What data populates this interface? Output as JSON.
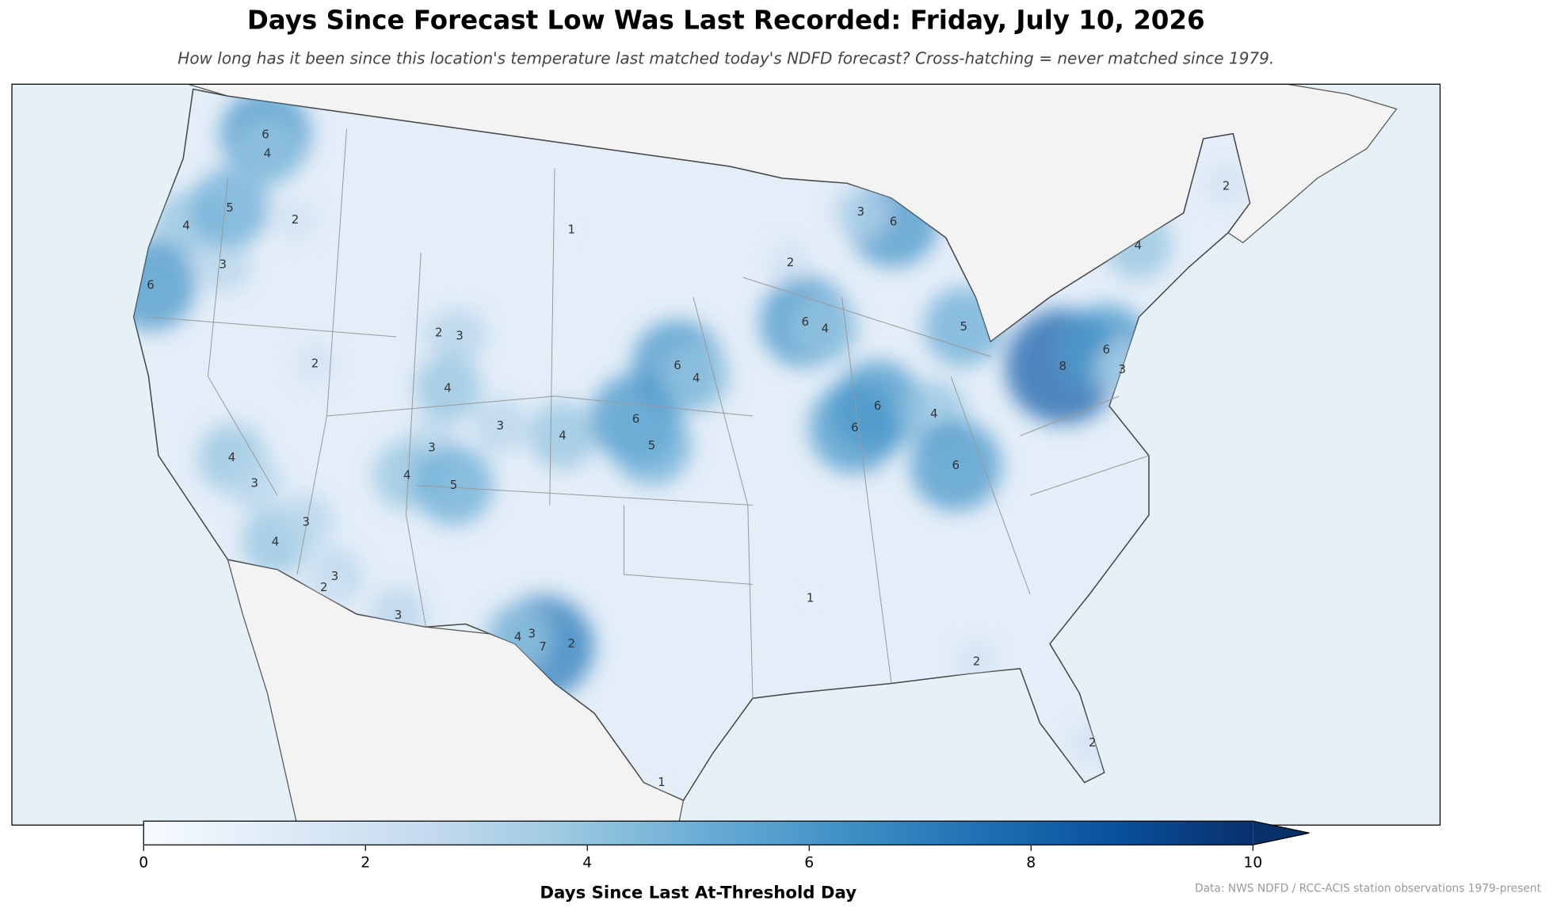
{
  "chart_data": {
    "type": "contour",
    "title": "Days Since Forecast Low Was Last Recorded: Friday, July 10, 2026",
    "subtitle": "How long has it been since this location's temperature last matched today's NDFD forecast? Cross-hatching = never matched since 1979.",
    "colorbar_label": "Days Since Last At-Threshold Day",
    "clim": [
      0,
      10
    ],
    "cticks": [
      0,
      2,
      4,
      6,
      8,
      10
    ],
    "extend": "max",
    "colors": [
      "#f7fbff",
      "#deebf7",
      "#c6dbef",
      "#9ecae1",
      "#6baed6",
      "#4292c6",
      "#2171b5",
      "#08519c",
      "#08306b"
    ],
    "contour_labels": [
      1,
      2,
      2,
      4,
      3,
      5,
      6,
      6,
      4,
      2,
      3,
      4,
      3,
      4,
      6,
      5,
      6,
      4,
      6,
      4,
      6,
      6,
      4,
      6,
      5,
      8,
      6,
      3,
      4,
      2,
      2,
      2,
      1,
      1,
      3,
      4,
      5,
      4,
      3,
      4,
      3,
      3,
      2,
      3,
      3,
      2,
      7,
      4,
      6,
      3,
      2
    ],
    "source": "Data: NWS NDFD / RCC-ACIS station observations 1979-present"
  }
}
